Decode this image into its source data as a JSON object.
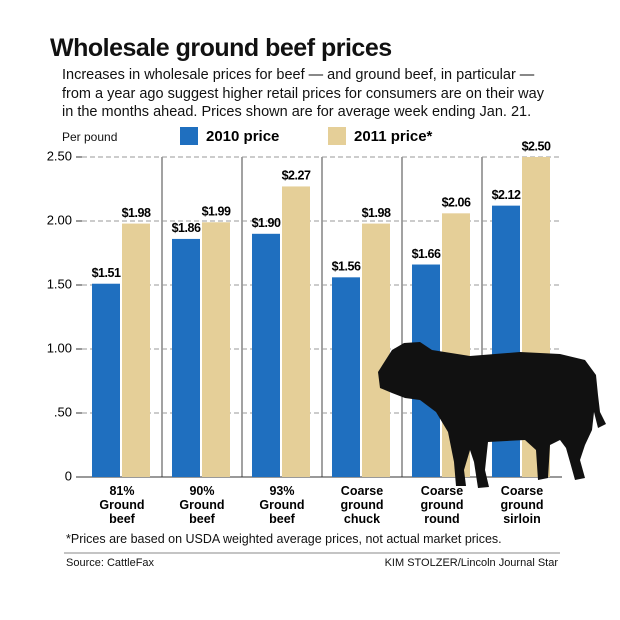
{
  "chart_data": {
    "type": "bar",
    "title": "Wholesale ground beef prices",
    "subtitle": "Increases in wholesale prices for beef — and ground beef, in particular — from a year ago suggest higher retail prices for consumers are on their way in the months ahead. Prices shown are for average week ending Jan. 21.",
    "y_label": "Per pound",
    "categories": [
      "81%\nGround\nbeef",
      "90%\nGround\nbeef",
      "93%\nGround\nbeef",
      "Coarse\nground\nchuck",
      "Coarse\nground\nround",
      "Coarse\nground\nsirloin"
    ],
    "series": [
      {
        "name": "2010 price",
        "color": "#1f6fbf",
        "values": [
          1.51,
          1.86,
          1.9,
          1.56,
          1.66,
          2.12
        ],
        "value_labels": [
          "$1.51",
          "$1.86",
          "$1.90",
          "$1.56",
          "$1.66",
          "$2.12"
        ]
      },
      {
        "name": "2011 price*",
        "color": "#e5cf98",
        "values": [
          1.98,
          1.99,
          2.27,
          1.98,
          2.06,
          2.5
        ],
        "value_labels": [
          "$1.98",
          "$1.99",
          "$2.27",
          "$1.98",
          "$2.06",
          "$2.50"
        ]
      }
    ],
    "ylim": [
      0,
      2.5
    ],
    "yticks": [
      0,
      {
        "value": 0.5,
        "label": ".50"
      },
      {
        "value": 1,
        "label": "1.00"
      },
      {
        "value": 1.5,
        "label": "1.50"
      },
      {
        "value": 2,
        "label": "2.00"
      },
      {
        "value": 2.5,
        "label": "2.50"
      }
    ],
    "grid": true,
    "footnote": "*Prices are based on USDA weighted average prices, not actual market prices.",
    "source": "Source: CattleFax",
    "credit": "KIM STOLZER/Lincoln Journal Star"
  }
}
